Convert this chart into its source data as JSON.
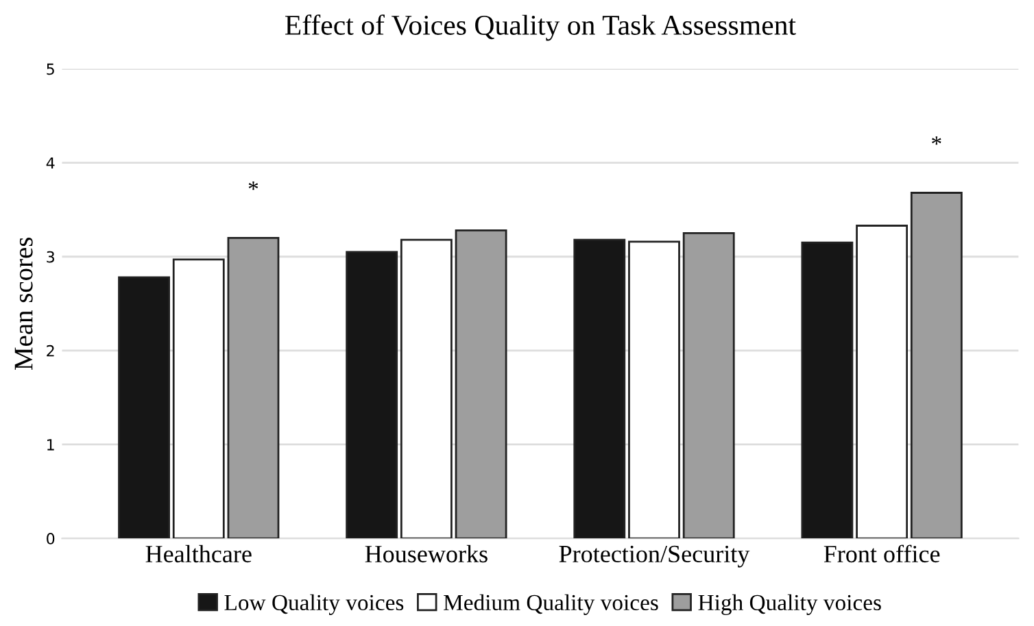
{
  "chart_data": {
    "type": "bar",
    "title": "Effect of Voices Quality on Task Assessment",
    "ylabel": "Mean scores",
    "categories": [
      "Healthcare",
      "Houseworks",
      "Protection/Security",
      "Front office"
    ],
    "series": [
      {
        "name": "Low Quality voices",
        "color": "#161616",
        "values": [
          2.78,
          3.05,
          3.18,
          3.15
        ]
      },
      {
        "name": "Medium Quality voices",
        "color": "#ffffff",
        "values": [
          2.97,
          3.18,
          3.16,
          3.33
        ]
      },
      {
        "name": "High Quality voices",
        "color": "#9e9e9e",
        "values": [
          3.2,
          3.28,
          3.25,
          3.68
        ]
      }
    ],
    "ylim": [
      0,
      5
    ],
    "yticks": [
      0,
      1,
      2,
      3,
      4,
      5
    ],
    "grid": "y",
    "legend": "bottom",
    "annotations": [
      "*",
      "*"
    ]
  }
}
